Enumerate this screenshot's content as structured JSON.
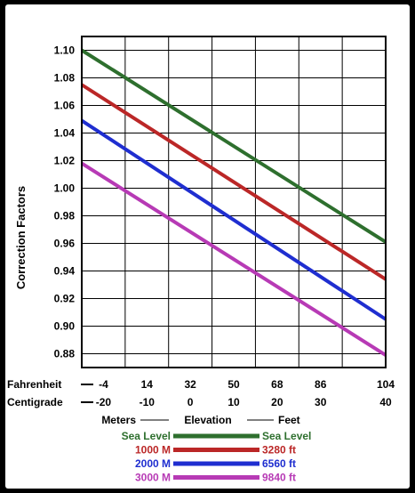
{
  "chart_data": {
    "type": "line",
    "ylabel": "Correction Factors",
    "ylim": [
      0.87,
      1.11
    ],
    "yticks": [
      "1.10",
      "1.08",
      "1.06",
      "1.04",
      "1.02",
      "1.00",
      "0.98",
      "0.96",
      "0.94",
      "0.92",
      "0.90",
      "0.88"
    ],
    "x_fahrenheit": {
      "label": "Fahrenheit",
      "ticks": [
        "-4",
        "14",
        "32",
        "50",
        "68",
        "86",
        "104"
      ]
    },
    "x_centigrade": {
      "label": "Centigrade",
      "ticks": [
        "-20",
        "-10",
        "0",
        "10",
        "20",
        "30",
        "40"
      ]
    },
    "x": [
      -20,
      40
    ],
    "grid": true,
    "series": [
      {
        "name": "Sea Level",
        "color": "#2e6f2e",
        "values": [
          1.1,
          0.961
        ]
      },
      {
        "name": "1000 M",
        "color": "#bb2727",
        "values": [
          1.075,
          0.934
        ]
      },
      {
        "name": "2000 M",
        "color": "#1f2ed0",
        "values": [
          1.049,
          0.905
        ]
      },
      {
        "name": "3000 M",
        "color": "#b73ab5",
        "values": [
          1.018,
          0.879
        ]
      }
    ]
  },
  "legend": {
    "header_left": "Meters",
    "header_mid": "Elevation",
    "header_right": "Feet",
    "rows": [
      {
        "left": "Sea Level",
        "right": "Sea Level",
        "color": "#2e6f2e",
        "text_color": "#2e6f2e"
      },
      {
        "left": "1000 M",
        "right": "3280 ft",
        "color": "#bb2727",
        "text_color": "#bb2727"
      },
      {
        "left": "2000 M",
        "right": "6560 ft",
        "color": "#1f2ed0",
        "text_color": "#1f2ed0"
      },
      {
        "left": "3000 M",
        "right": "9840 ft",
        "color": "#b73ab5",
        "text_color": "#b73ab5"
      }
    ]
  }
}
